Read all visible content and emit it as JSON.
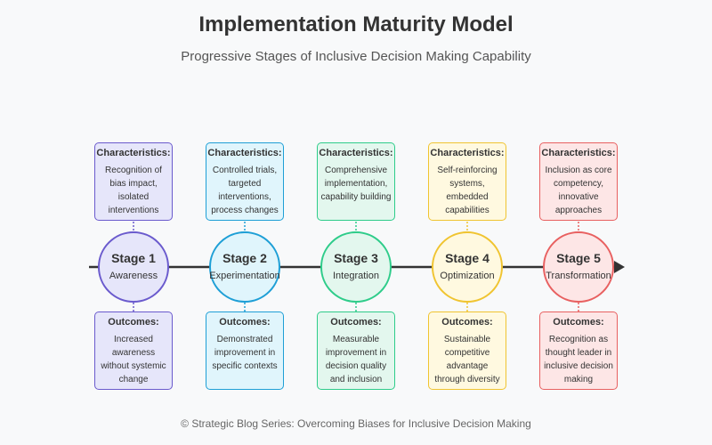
{
  "header": {
    "title": "Implementation Maturity Model",
    "subtitle": "Progressive Stages of Inclusive Decision Making Capability"
  },
  "footer": "© Strategic Blog Series: Overcoming Biases for Inclusive Decision Making",
  "labels": {
    "characteristics": "Characteristics:",
    "outcomes": "Outcomes:"
  },
  "stages": [
    {
      "stage": "Stage 1",
      "name": "Awareness",
      "fill": "#e6e6fa",
      "stroke": "#6a5acd",
      "characteristics": "Recognition of bias impact, isolated interventions",
      "outcomes": "Increased awareness without systemic change"
    },
    {
      "stage": "Stage 2",
      "name": "Experimentation",
      "fill": "#e0f5fc",
      "stroke": "#1e9fd6",
      "characteristics": "Controlled trials, targeted interventions, process changes",
      "outcomes": "Demonstrated improvement in specific contexts"
    },
    {
      "stage": "Stage 3",
      "name": "Integration",
      "fill": "#e3f7ee",
      "stroke": "#2ecc8a",
      "characteristics": "Comprehensive implementation, capability building",
      "outcomes": "Measurable improvement in decision quality and inclusion"
    },
    {
      "stage": "Stage 4",
      "name": "Optimization",
      "fill": "#fff9e0",
      "stroke": "#f0c430",
      "characteristics": "Self-reinforcing systems, embedded capabilities",
      "outcomes": "Sustainable competitive advantage through diversity"
    },
    {
      "stage": "Stage 5",
      "name": "Transformation",
      "fill": "#fde6e6",
      "stroke": "#e86060",
      "characteristics": "Inclusion as core competency, innovative approaches",
      "outcomes": "Recognition as thought leader in inclusive decision making"
    }
  ]
}
